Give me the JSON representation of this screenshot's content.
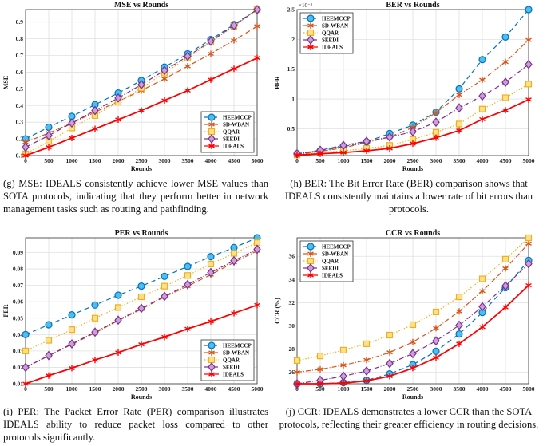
{
  "captions": {
    "g": "(g) MSE: IDEALS consistently achieve lower MSE values than SOTA protocols, indicating that they perform better in network management tasks such as routing and pathfinding.",
    "h": "(h) BER: The Bit Error Rate (BER) comparison shows that IDEALS consistently maintains a lower rate of bit errors than protocols.",
    "i": "(i) PER: The Packet Error Rate (PER) comparison illustrates IDEALS ability to reduce packet loss compared to other protocols significantly.",
    "j": "(j) CCR: IDEALS demonstrates a lower CCR than the SOTA protocols, reflecting their greater efficiency in routing decisions."
  },
  "series_styles": [
    {
      "name": "HEEMCCP",
      "color": "#0072BD",
      "fill": "#4DBEEE",
      "dash": "6,4",
      "marker": "circle"
    },
    {
      "name": "SD-WBAN",
      "color": "#D95319",
      "fill": "#D95319",
      "dash": "6,2,1,2",
      "marker": "asterisk"
    },
    {
      "name": "QQAR",
      "color": "#EDB120",
      "fill": "#FFE08A",
      "dash": "1.5,2",
      "marker": "square"
    },
    {
      "name": "SEEDI",
      "color": "#7E2F8E",
      "fill": "#C9A0DC",
      "dash": "6,2,1,2",
      "marker": "diamond"
    },
    {
      "name": "IDEALS",
      "color": "#FF0000",
      "fill": "#FF0000",
      "dash": "",
      "marker": "asterisk"
    }
  ],
  "chart_data": [
    {
      "type": "line",
      "title": "MSE vs Rounds",
      "xlabel": "Rounds",
      "ylabel": "MSE",
      "x": [
        0,
        500,
        1000,
        1500,
        2000,
        2500,
        3000,
        3500,
        4000,
        4500,
        5000
      ],
      "xlim": [
        0,
        5000
      ],
      "ylim": [
        0.1,
        0.975
      ],
      "yticks": [
        0.1,
        0.2,
        0.3,
        0.4,
        0.5,
        0.6,
        0.7,
        0.8,
        0.9
      ],
      "grid": true,
      "legend": "bottom-right",
      "exponent": "",
      "series": [
        {
          "name": "HEEMCCP",
          "values": [
            0.2,
            0.27,
            0.335,
            0.405,
            0.475,
            0.55,
            0.63,
            0.71,
            0.795,
            0.885,
            0.975
          ]
        },
        {
          "name": "SD-WBAN",
          "values": [
            0.18,
            0.235,
            0.295,
            0.36,
            0.425,
            0.49,
            0.56,
            0.635,
            0.71,
            0.79,
            0.875
          ]
        },
        {
          "name": "QQAR",
          "values": [
            0.11,
            0.185,
            0.265,
            0.34,
            0.42,
            0.505,
            0.595,
            0.685,
            0.78,
            0.875,
            0.975
          ]
        },
        {
          "name": "SEEDI",
          "values": [
            0.15,
            0.22,
            0.295,
            0.37,
            0.445,
            0.525,
            0.61,
            0.695,
            0.785,
            0.88,
            0.975
          ]
        },
        {
          "name": "IDEALS",
          "values": [
            0.1,
            0.15,
            0.205,
            0.26,
            0.315,
            0.37,
            0.43,
            0.49,
            0.555,
            0.62,
            0.685
          ]
        }
      ]
    },
    {
      "type": "line",
      "title": "BER vs Rounds",
      "xlabel": "Rounds",
      "ylabel": "BER",
      "x": [
        0,
        500,
        1000,
        1500,
        2000,
        2500,
        3000,
        3500,
        4000,
        4500,
        5000
      ],
      "xlim": [
        0,
        5000
      ],
      "ylim": [
        0.05,
        2.5
      ],
      "yticks": [
        0.5,
        1,
        1.5,
        2,
        2.5
      ],
      "grid": true,
      "legend": "top-left",
      "exponent": "×10⁻⁸",
      "series": [
        {
          "name": "HEEMCCP",
          "values": [
            0.08,
            0.13,
            0.2,
            0.28,
            0.42,
            0.56,
            0.78,
            1.17,
            1.66,
            2.04,
            2.5
          ]
        },
        {
          "name": "SD-WBAN",
          "values": [
            0.07,
            0.12,
            0.18,
            0.27,
            0.36,
            0.52,
            0.77,
            1.07,
            1.32,
            1.62,
            1.99
          ]
        },
        {
          "name": "QQAR",
          "values": [
            0.06,
            0.1,
            0.13,
            0.17,
            0.22,
            0.32,
            0.44,
            0.58,
            0.83,
            1.02,
            1.25
          ]
        },
        {
          "name": "SEEDI",
          "values": [
            0.08,
            0.14,
            0.22,
            0.29,
            0.36,
            0.45,
            0.61,
            0.85,
            1.05,
            1.28,
            1.58
          ]
        },
        {
          "name": "IDEALS",
          "values": [
            0.06,
            0.08,
            0.1,
            0.13,
            0.17,
            0.25,
            0.35,
            0.47,
            0.66,
            0.81,
            0.99
          ]
        }
      ]
    },
    {
      "type": "line",
      "title": "PER vs Rounds",
      "xlabel": "Rounds",
      "ylabel": "PER",
      "x": [
        0,
        500,
        1000,
        1500,
        2000,
        2500,
        3000,
        3500,
        4000,
        4500,
        5000
      ],
      "xlim": [
        0,
        5000
      ],
      "ylim": [
        0.01,
        0.099
      ],
      "yticks": [
        0.01,
        0.02,
        0.03,
        0.04,
        0.05,
        0.06,
        0.07,
        0.08,
        0.09
      ],
      "grid": true,
      "legend": "bottom-right",
      "exponent": "",
      "series": [
        {
          "name": "HEEMCCP",
          "values": [
            0.04,
            0.046,
            0.052,
            0.058,
            0.064,
            0.0695,
            0.0755,
            0.0815,
            0.0875,
            0.093,
            0.099
          ]
        },
        {
          "name": "SD-WBAN",
          "values": [
            0.02,
            0.027,
            0.034,
            0.041,
            0.0485,
            0.0555,
            0.063,
            0.0695,
            0.0765,
            0.084,
            0.091
          ]
        },
        {
          "name": "QQAR",
          "values": [
            0.03,
            0.0365,
            0.043,
            0.05,
            0.0565,
            0.063,
            0.0695,
            0.076,
            0.083,
            0.0895,
            0.096
          ]
        },
        {
          "name": "SEEDI",
          "values": [
            0.02,
            0.0272,
            0.0343,
            0.0415,
            0.0488,
            0.056,
            0.0633,
            0.0705,
            0.0778,
            0.085,
            0.092
          ]
        },
        {
          "name": "IDEALS",
          "values": [
            0.01,
            0.015,
            0.0195,
            0.0245,
            0.029,
            0.034,
            0.0385,
            0.0435,
            0.048,
            0.053,
            0.058
          ]
        }
      ]
    },
    {
      "type": "line",
      "title": "CCR vs Rounds",
      "xlabel": "Rounds",
      "ylabel": "CCR (%)",
      "x": [
        0,
        500,
        1000,
        1500,
        2000,
        2500,
        3000,
        3500,
        4000,
        4500,
        5000
      ],
      "xlim": [
        0,
        5000
      ],
      "ylim": [
        25,
        37.6
      ],
      "yticks": [
        26,
        28,
        30,
        32,
        34,
        36
      ],
      "grid": true,
      "legend": "top-left",
      "exponent": "",
      "series": [
        {
          "name": "HEEMCCP",
          "values": [
            25,
            25,
            25.1,
            25.3,
            25.85,
            26.65,
            27.8,
            29.3,
            31.15,
            33.3,
            35.65
          ]
        },
        {
          "name": "SD-WBAN",
          "values": [
            26,
            26.25,
            26.6,
            27.05,
            27.7,
            28.6,
            29.8,
            31.25,
            33,
            34.95,
            37.1
          ]
        },
        {
          "name": "QQAR",
          "values": [
            27,
            27.4,
            27.9,
            28.45,
            29.2,
            30.1,
            31.2,
            32.5,
            34.05,
            35.75,
            37.6
          ]
        },
        {
          "name": "SEEDI",
          "values": [
            25,
            25.3,
            25.65,
            26.1,
            26.75,
            27.6,
            28.7,
            30.05,
            31.65,
            33.45,
            35.35
          ]
        },
        {
          "name": "IDEALS",
          "values": [
            25,
            25,
            25.05,
            25.25,
            25.65,
            26.35,
            27.25,
            28.45,
            29.9,
            31.6,
            33.5
          ]
        }
      ]
    }
  ]
}
